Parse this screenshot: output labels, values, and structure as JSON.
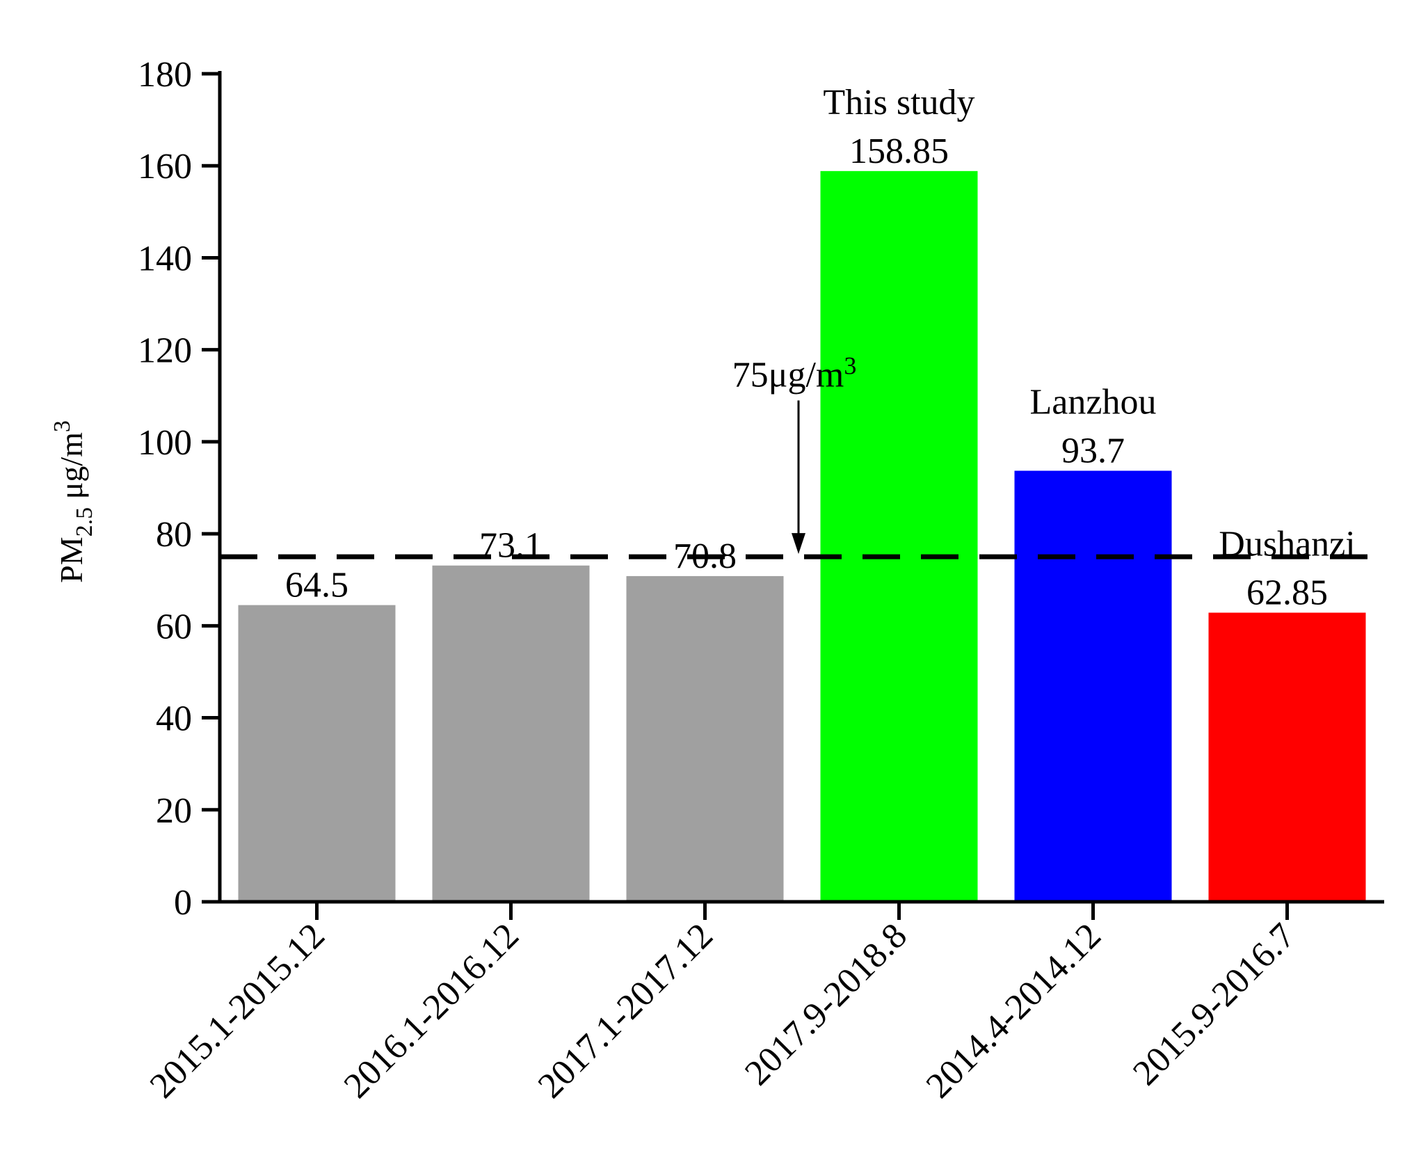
{
  "chart_data": {
    "type": "bar",
    "categories": [
      "2015.1-2015.12",
      "2016.1-2016.12",
      "2017.1-2017.12",
      "2017.9-2018.8",
      "2014.4-2014.12",
      "2015.9-2016.7"
    ],
    "values": [
      64.5,
      73.1,
      70.8,
      158.85,
      93.7,
      62.85
    ],
    "value_labels": [
      "64.5",
      "73.1",
      "70.8",
      "158.85",
      "93.7",
      "62.85"
    ],
    "bar_colors": [
      "#a0a0a0",
      "#a0a0a0",
      "#a0a0a0",
      "#00ff00",
      "#0000ff",
      "#ff0000"
    ],
    "bar_annotations": [
      "",
      "",
      "",
      "This study",
      "Lanzhou",
      "Dushanzi"
    ],
    "title": "",
    "xlabel": "",
    "ylabel": {
      "base": "PM",
      "sub": "2.5",
      "unit": " μg/m",
      "sup": "3"
    },
    "ylim": [
      0,
      180
    ],
    "yticks": [
      0,
      20,
      40,
      60,
      80,
      100,
      120,
      140,
      160,
      180
    ],
    "reference_line": {
      "value": 75,
      "style": "dashed",
      "label": {
        "base": "75μg/m",
        "sup": "3"
      }
    },
    "grid": false,
    "legend": "none"
  }
}
